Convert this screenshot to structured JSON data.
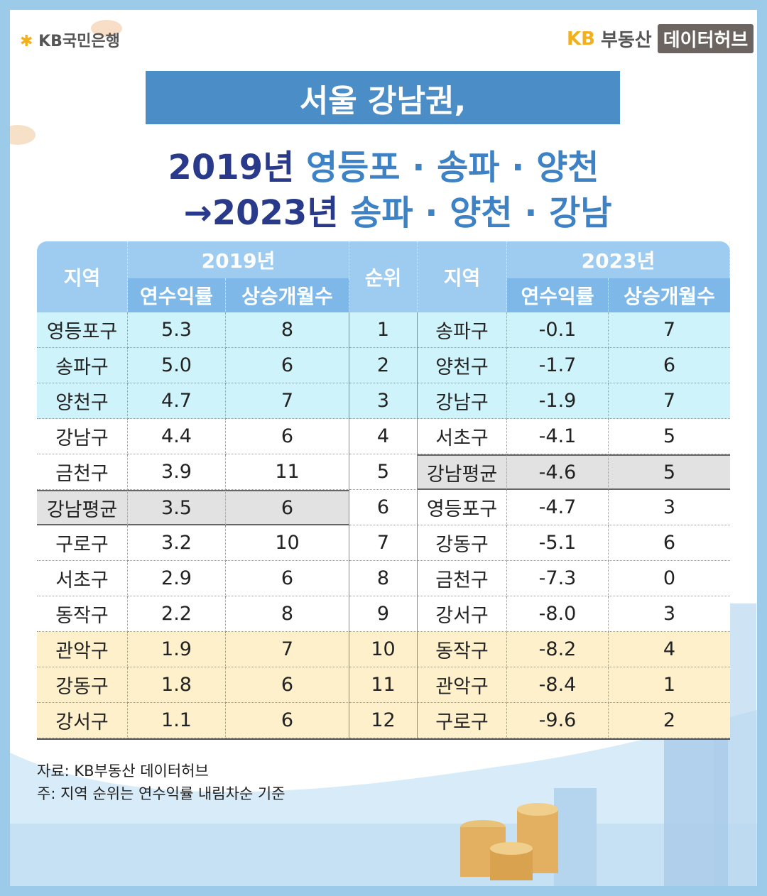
{
  "header": {
    "logo_left": "KB국민은행",
    "logo_right_kb": "KB",
    "logo_right_name": "부동산",
    "logo_right_badge": "데이터허브"
  },
  "title": {
    "line1": "서울 강남권,",
    "line2_year": "2019년",
    "line2_regions": "영등포 · 송파 · 양천",
    "line3_year": "→2023년",
    "line3_regions": "송파 · 양천 · 강남"
  },
  "table": {
    "header": {
      "region_left": "지역",
      "year_left": "2019년",
      "yield_left": "연수익률",
      "months_left": "상승개월수",
      "rank": "순위",
      "region_right": "지역",
      "year_right": "2023년",
      "yield_right": "연수익률",
      "months_right": "상승개월수"
    },
    "rows": [
      [
        "영등포구",
        "5.3",
        "8",
        "1",
        "송파구",
        "-0.1",
        "7"
      ],
      [
        "송파구",
        "5.0",
        "6",
        "2",
        "양천구",
        "-1.7",
        "6"
      ],
      [
        "양천구",
        "4.7",
        "7",
        "3",
        "강남구",
        "-1.9",
        "7"
      ],
      [
        "강남구",
        "4.4",
        "6",
        "4",
        "서초구",
        "-4.1",
        "5"
      ],
      [
        "금천구",
        "3.9",
        "11",
        "5",
        "강남평균",
        "-4.6",
        "5"
      ],
      [
        "강남평균",
        "3.5",
        "6",
        "6",
        "영등포구",
        "-4.7",
        "3"
      ],
      [
        "구로구",
        "3.2",
        "10",
        "7",
        "강동구",
        "-5.1",
        "6"
      ],
      [
        "서초구",
        "2.9",
        "6",
        "8",
        "금천구",
        "-7.3",
        "0"
      ],
      [
        "동작구",
        "2.2",
        "8",
        "9",
        "강서구",
        "-8.0",
        "3"
      ],
      [
        "관악구",
        "1.9",
        "7",
        "10",
        "동작구",
        "-8.2",
        "4"
      ],
      [
        "강동구",
        "1.8",
        "6",
        "11",
        "관악구",
        "-8.4",
        "1"
      ],
      [
        "강서구",
        "1.1",
        "6",
        "12",
        "구로구",
        "-9.6",
        "2"
      ]
    ]
  },
  "footer": {
    "source": "자료: KB부동산 데이터허브",
    "note": "주: 지역 순위는 연수익률 내림차순 기준"
  }
}
